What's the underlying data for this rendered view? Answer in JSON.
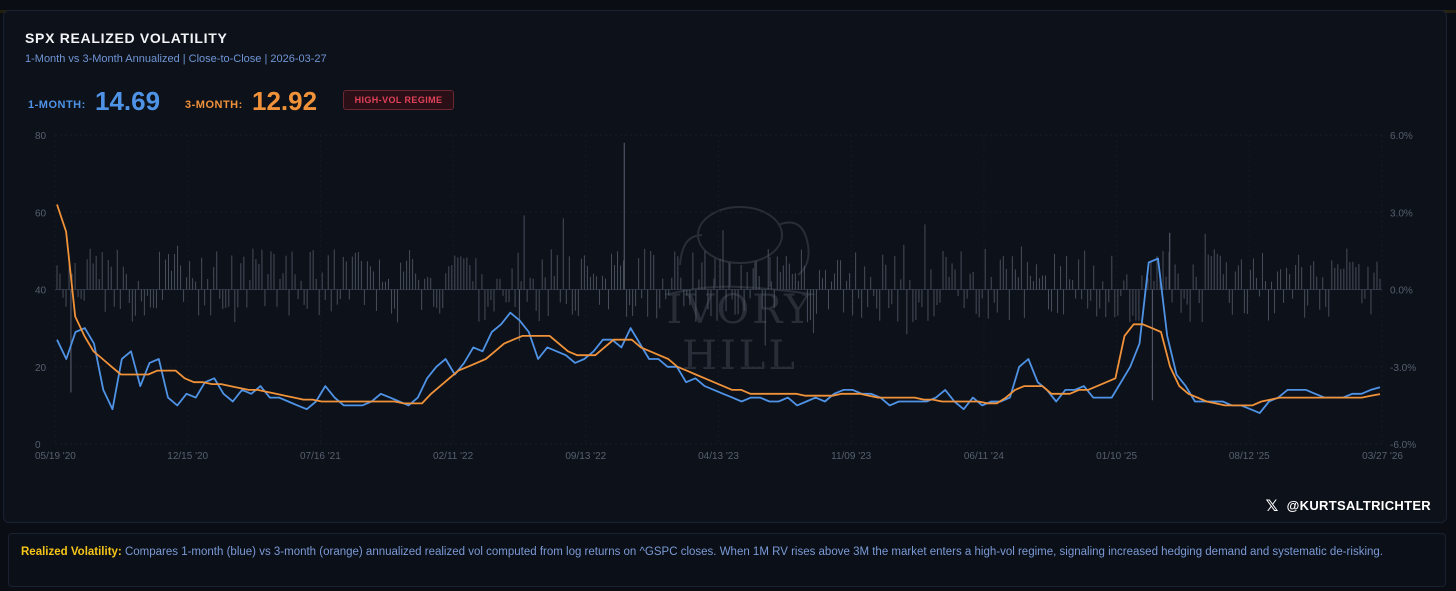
{
  "header": {
    "title": "SPX REALIZED VOLATILITY",
    "subtitle": "1-Month vs 3-Month Annualized | Close-to-Close | 2026-03-27"
  },
  "stats": {
    "one_month_label": "1-MONTH:",
    "one_month_value": "14.69",
    "three_month_label": "3-MONTH:",
    "three_month_value": "12.92",
    "regime_badge": "HIGH-VOL REGIME"
  },
  "colors": {
    "one_month": "#4f93e6",
    "three_month": "#f0923a",
    "badge": "#e0425a",
    "accent": "#f5c518",
    "returns_bars": "#5b6170"
  },
  "watermark": {
    "text": "IVORY HILL",
    "icon": "elephant-icon"
  },
  "footer": {
    "handle_icon": "x-logo-icon",
    "handle": "@KURTSALTRICHTER",
    "description_key": "Realized Volatility:",
    "description": "Compares 1-month (blue) vs 3-month (orange) annualized realized vol computed from log returns on ^GSPC closes. When 1M RV rises above 3M the market enters a high-vol regime, signaling increased hedging demand and systematic de-risking."
  },
  "chart_data": {
    "type": "line",
    "x_tick_labels": [
      "05/19 '20",
      "12/15 '20",
      "07/16 '21",
      "02/11 '22",
      "09/13 '22",
      "04/13 '23",
      "11/09 '23",
      "06/11 '24",
      "01/10 '25",
      "08/12 '25",
      "03/27 '26"
    ],
    "y_left_ticks": [
      "0",
      "20",
      "40",
      "60",
      "80"
    ],
    "ylim_left": [
      0,
      80
    ],
    "y_right_ticks": [
      "6.0%",
      "3.0%",
      "0.0%",
      "-3.0%",
      "-6.0%"
    ],
    "ylim_right": [
      -6,
      6
    ],
    "grid": true,
    "series": [
      {
        "key": "one_month",
        "values": [
          27,
          22,
          29,
          30,
          26,
          14,
          9,
          22,
          24,
          15,
          21,
          22,
          12,
          10,
          13,
          12,
          16,
          17,
          13,
          11,
          14,
          13,
          15,
          12,
          12,
          11,
          10,
          9,
          11,
          15,
          12,
          10,
          10,
          10,
          11,
          13,
          12,
          11,
          10,
          12,
          17,
          20,
          22,
          18,
          21,
          25,
          24,
          29,
          31,
          34,
          32,
          29,
          22,
          25,
          24,
          23,
          21,
          22,
          24,
          27,
          27,
          25,
          30,
          26,
          22,
          22,
          20,
          20,
          16,
          17,
          15,
          14,
          13,
          12,
          11,
          12,
          12,
          11,
          11,
          12,
          10,
          11,
          12,
          11,
          13,
          14,
          14,
          13,
          13,
          12,
          10,
          11,
          11,
          11,
          11,
          12,
          14,
          11,
          9,
          12,
          10,
          11,
          11,
          12,
          20,
          22,
          16,
          14,
          11,
          14,
          14,
          15,
          12,
          12,
          12,
          16,
          20,
          26,
          47,
          48,
          28,
          18,
          15,
          11,
          11,
          11,
          11,
          10,
          10,
          9,
          8,
          11,
          12,
          14,
          14,
          14,
          13,
          12,
          12,
          12,
          13,
          13,
          14,
          14.69
        ]
      },
      {
        "key": "three_month",
        "values": [
          62,
          55,
          33,
          28,
          24,
          22,
          20,
          18,
          18,
          18,
          18,
          19,
          19,
          19,
          17,
          16,
          16,
          15.5,
          15.5,
          15,
          14.5,
          14,
          14,
          13.5,
          13,
          12.5,
          12,
          11.5,
          11.5,
          11,
          11,
          11,
          11,
          11,
          11,
          11,
          11,
          11,
          10.5,
          10.5,
          10.5,
          13,
          15,
          17,
          19,
          20,
          21,
          22,
          24,
          26,
          27,
          28,
          28,
          28,
          28,
          26,
          24,
          23,
          23,
          23,
          25,
          27,
          27,
          27,
          25,
          24,
          23,
          22,
          20,
          19,
          18,
          17,
          16,
          15,
          14,
          14,
          13,
          13,
          13,
          13,
          13,
          13,
          12.5,
          12.5,
          12.5,
          12.5,
          13,
          13,
          13,
          12.5,
          12,
          12,
          12,
          12,
          12,
          11.5,
          11.5,
          11,
          11,
          11,
          11,
          11,
          10.5,
          10.5,
          12,
          14,
          15,
          15,
          15,
          13,
          13,
          13,
          14,
          14,
          15,
          16,
          17,
          28,
          31,
          31,
          30,
          29,
          20,
          15,
          13,
          12,
          11,
          10.5,
          10,
          10,
          10,
          10,
          11,
          11.5,
          12,
          12,
          12,
          12,
          12,
          12,
          12,
          12,
          12,
          12,
          12.5,
          12.92
        ]
      }
    ],
    "returns_bars_note": "daily SPX log returns, right axis"
  }
}
